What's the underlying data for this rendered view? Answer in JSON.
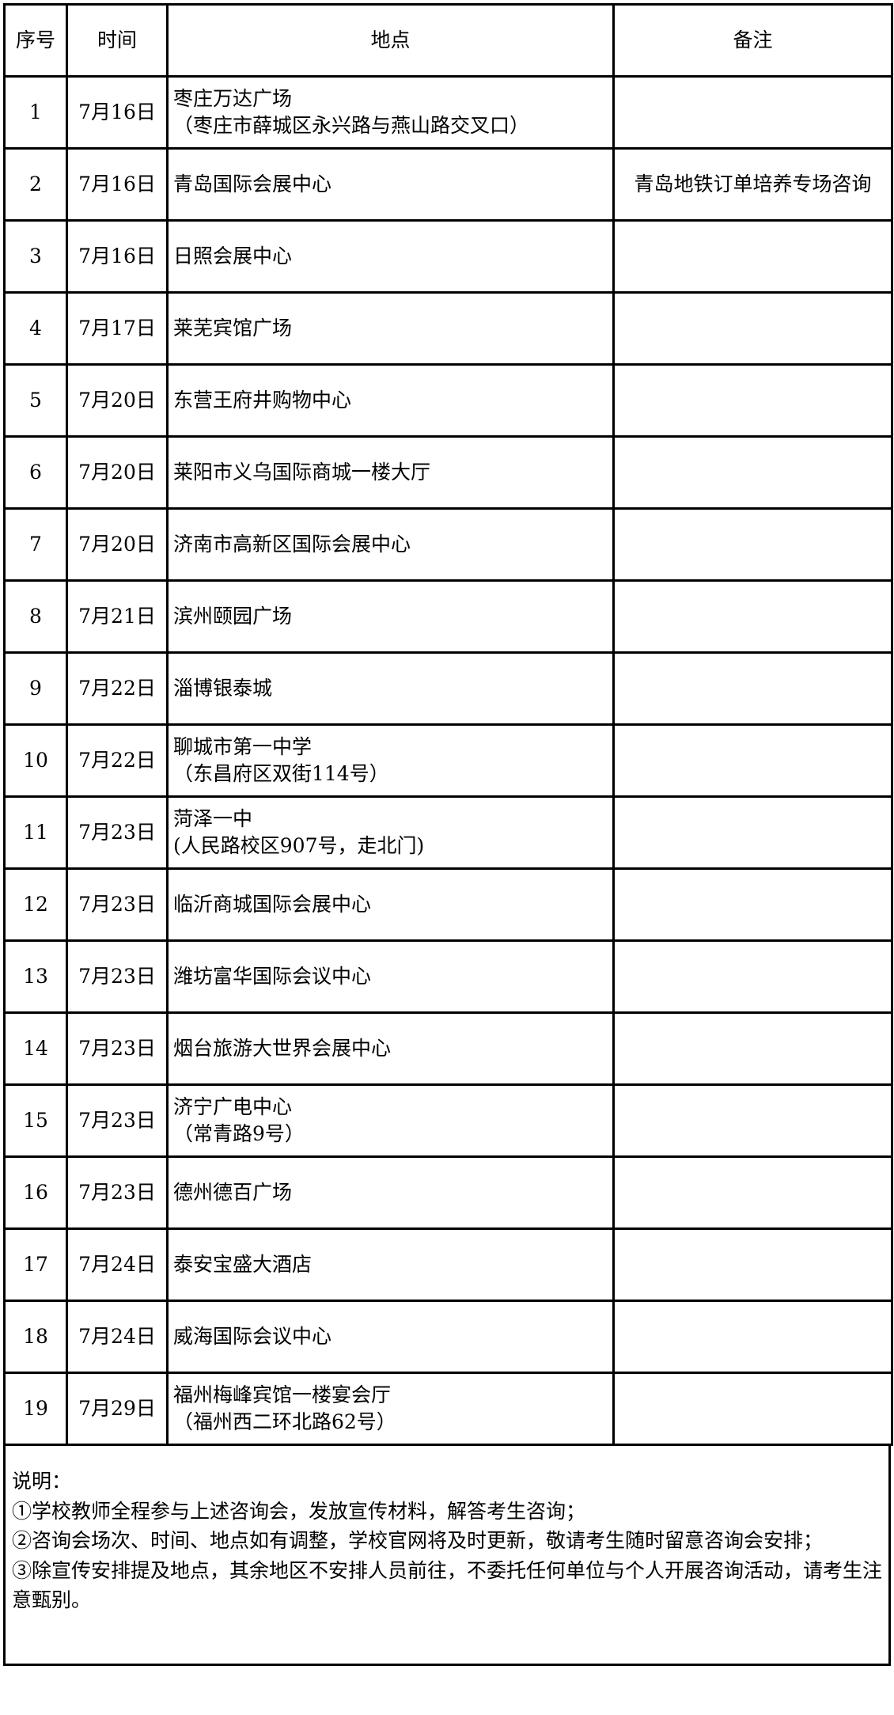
{
  "headers": {
    "index": "序号",
    "date": "时间",
    "location": "地点",
    "remark": "备注"
  },
  "rows": [
    {
      "index": "1",
      "date": "7月16日",
      "location": "枣庄万达广场",
      "sub": "（枣庄市薛城区永兴路与燕山路交叉口）",
      "remark": ""
    },
    {
      "index": "2",
      "date": "7月16日",
      "location": "青岛国际会展中心",
      "sub": "",
      "remark": "青岛地铁订单培养专场咨询"
    },
    {
      "index": "3",
      "date": "7月16日",
      "location": "日照会展中心",
      "sub": "",
      "remark": ""
    },
    {
      "index": "4",
      "date": "7月17日",
      "location": "莱芜宾馆广场",
      "sub": "",
      "remark": ""
    },
    {
      "index": "5",
      "date": "7月20日",
      "location": "东营王府井购物中心",
      "sub": "",
      "remark": ""
    },
    {
      "index": "6",
      "date": "7月20日",
      "location": "莱阳市义乌国际商城一楼大厅",
      "sub": "",
      "remark": ""
    },
    {
      "index": "7",
      "date": "7月20日",
      "location": "济南市高新区国际会展中心",
      "sub": "",
      "remark": ""
    },
    {
      "index": "8",
      "date": "7月21日",
      "location": "滨州颐园广场",
      "sub": "",
      "remark": ""
    },
    {
      "index": "9",
      "date": "7月22日",
      "location": "淄博银泰城",
      "sub": "",
      "remark": ""
    },
    {
      "index": "10",
      "date": "7月22日",
      "location": "聊城市第一中学",
      "sub": "（东昌府区双街114号）",
      "remark": ""
    },
    {
      "index": "11",
      "date": "7月23日",
      "location": "菏泽一中",
      "sub": "(人民路校区907号，走北门)",
      "remark": ""
    },
    {
      "index": "12",
      "date": "7月23日",
      "location": "临沂商城国际会展中心",
      "sub": "",
      "remark": ""
    },
    {
      "index": "13",
      "date": "7月23日",
      "location": "潍坊富华国际会议中心",
      "sub": "",
      "remark": ""
    },
    {
      "index": "14",
      "date": "7月23日",
      "location": "烟台旅游大世界会展中心",
      "sub": "",
      "remark": ""
    },
    {
      "index": "15",
      "date": "7月23日",
      "location": "济宁广电中心",
      "sub": "（常青路9号）",
      "remark": ""
    },
    {
      "index": "16",
      "date": "7月23日",
      "location": "德州德百广场",
      "sub": "",
      "remark": ""
    },
    {
      "index": "17",
      "date": "7月24日",
      "location": "泰安宝盛大酒店",
      "sub": "",
      "remark": ""
    },
    {
      "index": "18",
      "date": "7月24日",
      "location": "威海国际会议中心",
      "sub": "",
      "remark": ""
    },
    {
      "index": "19",
      "date": "7月29日",
      "location": "福州梅峰宾馆一楼宴会厅",
      "sub": "（福州西二环北路62号）",
      "remark": ""
    }
  ],
  "notes": {
    "title": "说明：",
    "items": [
      "①学校教师全程参与上述咨询会，发放宣传材料，解答考生咨询；",
      "②咨询会场次、时间、地点如有调整，学校官网将及时更新，敬请考生随时留意咨询会安排；",
      "③除宣传安排提及地点，其余地区不安排人员前往，不委托任何单位与个人开展咨询活动，请考生注意甄别。"
    ]
  }
}
